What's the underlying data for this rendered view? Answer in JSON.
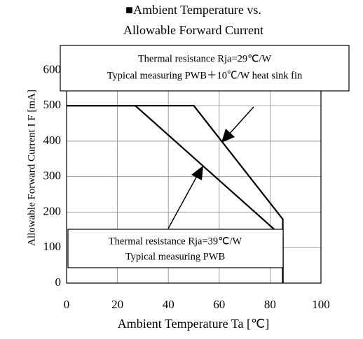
{
  "chart_data": {
    "type": "line",
    "title": [
      "■Ambient Temperature vs.",
      "Allowable Forward Current"
    ],
    "x_label": "Ambient Temperature Ta [℃]",
    "y_label": "Allowable Forward Current I F [mA]",
    "xlim": [
      0,
      100
    ],
    "xticks": [
      0,
      20,
      40,
      60,
      80,
      100
    ],
    "ylim": [
      0,
      650
    ],
    "yticks": [
      0,
      100,
      200,
      300,
      400,
      500,
      600
    ],
    "grid": true,
    "series": [
      {
        "color": "#000000",
        "x": [
          0,
          27,
          85,
          85
        ],
        "values": [
          500,
          500,
          130,
          0
        ]
      },
      {
        "color": "#000000",
        "x": [
          0,
          50,
          85,
          85
        ],
        "values": [
          500,
          500,
          180,
          0
        ]
      }
    ],
    "annotations": [
      {
        "lines": [
          "Thermal  resistance Rja=29℃/W",
          "Typical  measuring PWB＋10℃/W  heat sink fin"
        ]
      },
      {
        "lines": [
          "Thermal resistance Rja=39℃/W",
          "Typical  measuring PWB"
        ]
      }
    ]
  }
}
